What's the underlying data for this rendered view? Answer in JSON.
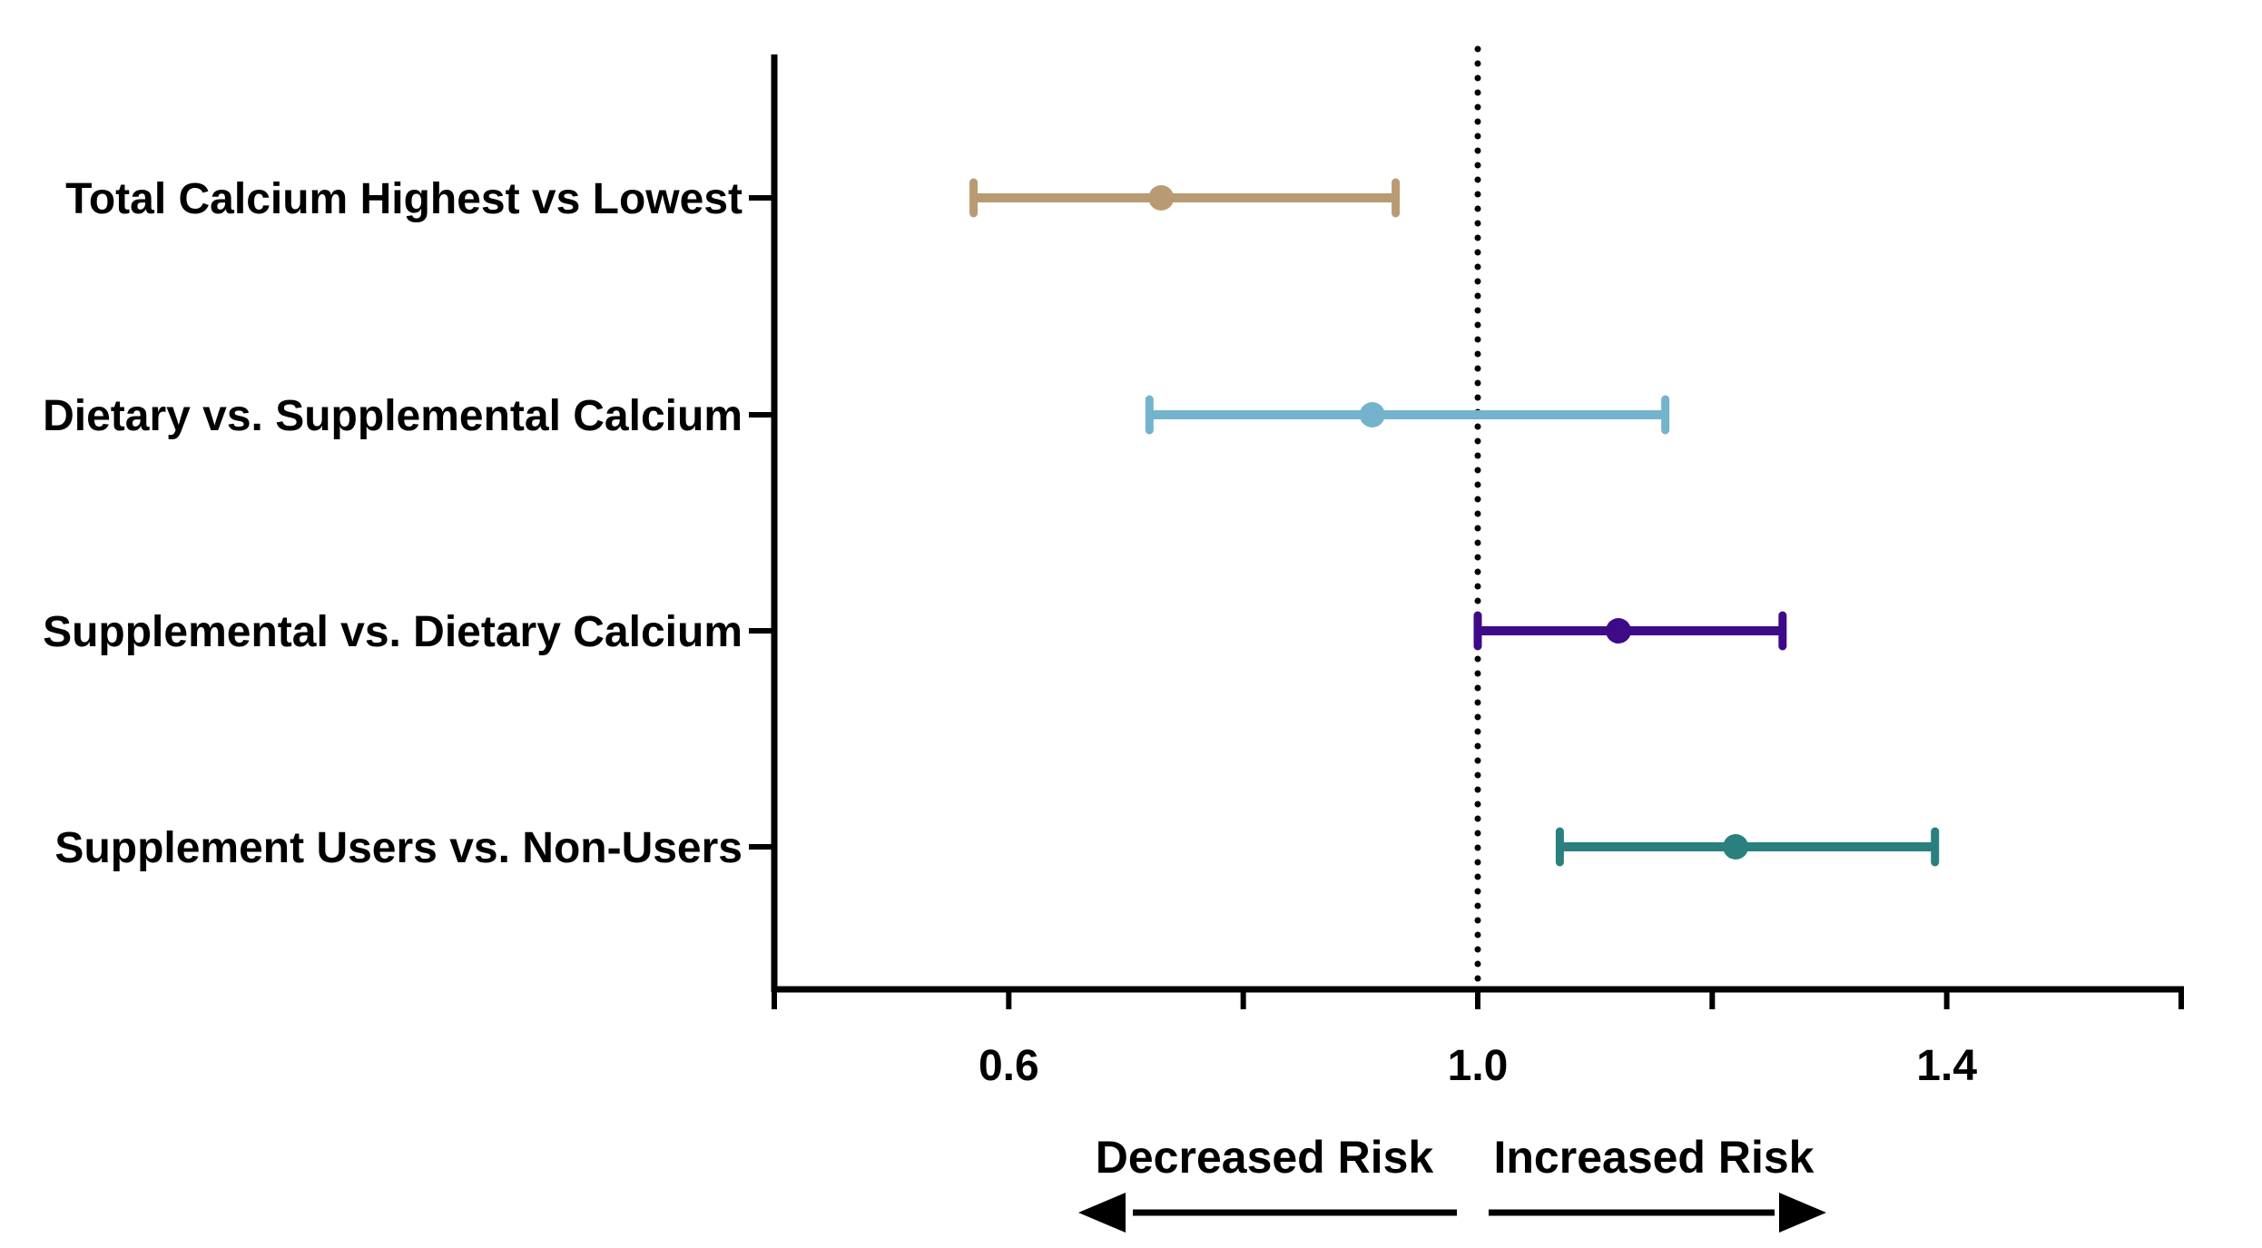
{
  "chart_data": {
    "type": "forest",
    "categories": [
      "Total Calcium Highest vs Lowest",
      "Dietary vs. Supplemental Calcium",
      "Supplemental vs. Dietary Calcium",
      "Supplement Users vs. Non-Users"
    ],
    "points": [
      {
        "label": "Total Calcium Highest vs Lowest",
        "estimate": 0.73,
        "lower": 0.57,
        "upper": 0.93,
        "color": "#b89b72"
      },
      {
        "label": "Dietary vs. Supplemental Calcium",
        "estimate": 0.91,
        "lower": 0.72,
        "upper": 1.16,
        "color": "#74b3cc"
      },
      {
        "label": "Supplemental vs. Dietary Calcium",
        "estimate": 1.12,
        "lower": 1.0,
        "upper": 1.26,
        "color": "#3d0b87"
      },
      {
        "label": "Supplement Users vs. Non-Users",
        "estimate": 1.22,
        "lower": 1.07,
        "upper": 1.39,
        "color": "#2a7f7f"
      }
    ],
    "xlim": [
      0.4,
      1.6
    ],
    "major_ticks": [
      0.6,
      1.0,
      1.4
    ],
    "tick_labels": [
      "0.6",
      "1.0",
      "1.4"
    ],
    "minor_ticks": [
      0.4,
      0.8,
      1.2,
      1.6
    ],
    "reference_line": 1.0,
    "annotations": {
      "left": "Decreased Risk",
      "right": "Increased Risk"
    },
    "grid": false
  }
}
